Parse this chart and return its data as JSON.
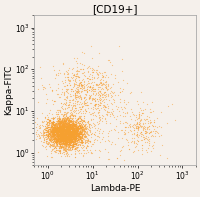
{
  "title": "[CD19+]",
  "xlabel": "Lambda-PE",
  "ylabel": "Kappa-FITC",
  "xlim_log": [
    0.5,
    2000
  ],
  "ylim_log": [
    0.5,
    2000
  ],
  "background_color": "#f5f0eb",
  "plot_bg_color": "#f5f0eb",
  "dot_color": "#F5A030",
  "dot_alpha": 0.55,
  "dot_size": 0.8,
  "n_main_cluster": 4000,
  "n_scatter_up": 600,
  "n_lambda_cluster": 200,
  "n_noise": 300,
  "seed": 7,
  "title_fontsize": 7.5,
  "axis_label_fontsize": 6.5,
  "tick_fontsize": 5.5,
  "figsize": [
    2.0,
    1.97
  ],
  "dpi": 100
}
